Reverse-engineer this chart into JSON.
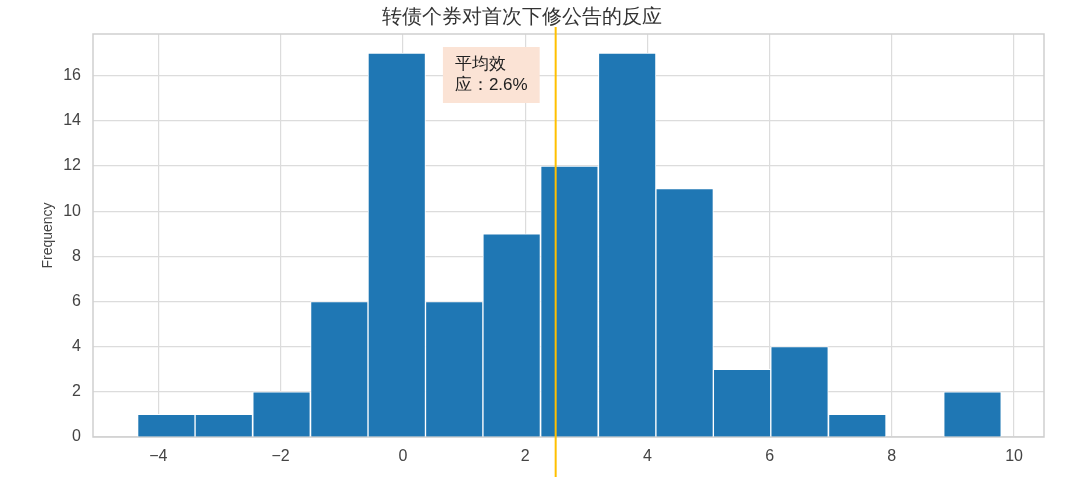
{
  "chart_data": {
    "type": "histogram",
    "title": "转债个券对首次下修公告的反应",
    "ylabel": "Frequency",
    "bins": [
      -4.34,
      -3.4,
      -2.46,
      -1.51,
      -0.57,
      0.37,
      1.31,
      2.25,
      3.2,
      4.14,
      5.08,
      6.02,
      6.96,
      7.91,
      8.85,
      9.79
    ],
    "values": [
      1,
      1,
      2,
      6,
      17,
      6,
      9,
      12,
      17,
      11,
      3,
      4,
      1,
      0,
      2
    ],
    "color": "#1f77b4",
    "xlim": [
      -5.07,
      10.49
    ],
    "ylim": [
      0,
      17.85
    ],
    "xticks": [
      {
        "value": -4,
        "label": "−4"
      },
      {
        "value": -2,
        "label": "−2"
      },
      0,
      2,
      4,
      6,
      8,
      10
    ],
    "yticks": [
      0,
      2,
      4,
      6,
      8,
      10,
      12,
      14,
      16
    ],
    "grid": true,
    "ref_lines": [
      {
        "axis": "x",
        "value": 2.5,
        "label": "平均效应：2.6%",
        "color": "#ffc000"
      }
    ]
  }
}
